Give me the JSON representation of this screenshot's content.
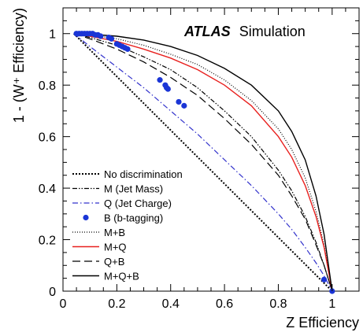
{
  "chart_data": {
    "type": "line",
    "annotation": {
      "bold": "ATLAS",
      "normal": "Simulation"
    },
    "xlabel": "Z Efficiency",
    "ylabel": "1 - (W⁺ Efficiency)",
    "xlim": [
      0,
      1.1
    ],
    "ylim": [
      0,
      1.1
    ],
    "xticks": [
      0,
      0.2,
      0.4,
      0.6,
      0.8,
      1
    ],
    "yticks": [
      0,
      0.2,
      0.4,
      0.6,
      0.8,
      1
    ],
    "xtick_labels": [
      "0",
      "0.2",
      "0.4",
      "0.6",
      "0.8",
      "1"
    ],
    "ytick_labels": [
      "0",
      "0.2",
      "0.4",
      "0.6",
      "0.8",
      "1"
    ],
    "grid": false,
    "legend_position": "bottom-left",
    "series": [
      {
        "name": "No discrimination",
        "style": "dotted-dense",
        "color": "#000000",
        "x": [
          0.04,
          1.0
        ],
        "y": [
          1.0,
          0.0
        ]
      },
      {
        "name": "M (Jet Mass)",
        "style": "dash-dot-dot",
        "color": "#000000",
        "x": [
          0.04,
          0.1,
          0.2,
          0.3,
          0.4,
          0.5,
          0.6,
          0.7,
          0.8,
          0.85,
          0.9,
          0.94,
          0.97,
          1.0
        ],
        "y": [
          1.0,
          0.985,
          0.955,
          0.91,
          0.86,
          0.79,
          0.7,
          0.6,
          0.47,
          0.39,
          0.29,
          0.19,
          0.1,
          0.0
        ]
      },
      {
        "name": "Q (Jet Charge)",
        "style": "dash-dot",
        "color": "#3333cc",
        "x": [
          0.04,
          0.1,
          0.2,
          0.3,
          0.4,
          0.5,
          0.6,
          0.7,
          0.8,
          0.85,
          0.9,
          0.94,
          0.97,
          1.0
        ],
        "y": [
          1.0,
          0.95,
          0.87,
          0.79,
          0.7,
          0.61,
          0.51,
          0.41,
          0.3,
          0.24,
          0.17,
          0.11,
          0.06,
          0.0
        ]
      },
      {
        "name": "B (b-tagging)",
        "style": "markers",
        "color": "#1a35d6",
        "x": [
          0.05,
          0.06,
          0.07,
          0.08,
          0.09,
          0.1,
          0.11,
          0.12,
          0.13,
          0.14,
          0.17,
          0.18,
          0.2,
          0.21,
          0.22,
          0.23,
          0.24,
          0.36,
          0.38,
          0.385,
          0.39,
          0.43,
          0.45,
          0.97,
          1.0
        ],
        "y": [
          1.0,
          1.0,
          1.0,
          1.0,
          1.0,
          1.0,
          1.0,
          0.995,
          0.995,
          0.99,
          0.985,
          0.98,
          0.96,
          0.955,
          0.95,
          0.945,
          0.94,
          0.82,
          0.8,
          0.79,
          0.785,
          0.735,
          0.72,
          0.045,
          0.0
        ]
      },
      {
        "name": "M+B",
        "style": "dotted",
        "color": "#000000",
        "x": [
          0.04,
          0.1,
          0.2,
          0.3,
          0.4,
          0.5,
          0.6,
          0.7,
          0.8,
          0.85,
          0.9,
          0.94,
          0.97,
          1.0
        ],
        "y": [
          1.0,
          0.995,
          0.98,
          0.955,
          0.92,
          0.88,
          0.82,
          0.74,
          0.63,
          0.55,
          0.44,
          0.31,
          0.18,
          0.0
        ]
      },
      {
        "name": "M+Q",
        "style": "solid",
        "color": "#e8201e",
        "x": [
          0.04,
          0.1,
          0.2,
          0.3,
          0.4,
          0.5,
          0.6,
          0.7,
          0.8,
          0.85,
          0.9,
          0.94,
          0.97,
          1.0
        ],
        "y": [
          1.0,
          0.99,
          0.97,
          0.94,
          0.905,
          0.86,
          0.8,
          0.72,
          0.6,
          0.52,
          0.41,
          0.29,
          0.17,
          0.0
        ]
      },
      {
        "name": "Q+B",
        "style": "long-dash",
        "color": "#000000",
        "x": [
          0.04,
          0.1,
          0.2,
          0.3,
          0.4,
          0.5,
          0.6,
          0.7,
          0.8,
          0.85,
          0.9,
          0.94,
          0.97,
          1.0
        ],
        "y": [
          1.0,
          0.98,
          0.94,
          0.89,
          0.83,
          0.76,
          0.67,
          0.57,
          0.45,
          0.37,
          0.28,
          0.18,
          0.1,
          0.0
        ]
      },
      {
        "name": "M+Q+B",
        "style": "solid",
        "color": "#000000",
        "x": [
          0.04,
          0.1,
          0.2,
          0.3,
          0.4,
          0.5,
          0.6,
          0.7,
          0.8,
          0.85,
          0.9,
          0.94,
          0.97,
          1.0
        ],
        "y": [
          1.0,
          0.998,
          0.99,
          0.975,
          0.95,
          0.915,
          0.865,
          0.8,
          0.7,
          0.62,
          0.51,
          0.37,
          0.22,
          0.0
        ]
      }
    ]
  }
}
